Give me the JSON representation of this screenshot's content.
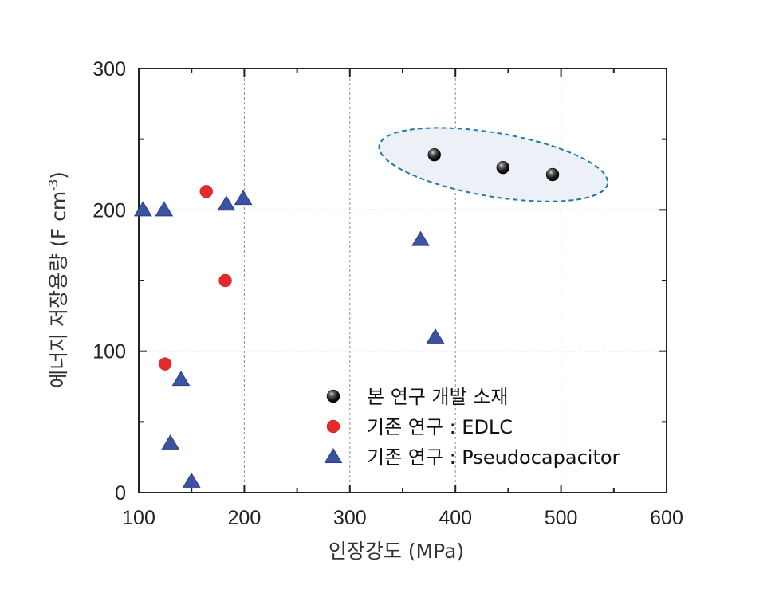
{
  "chart_data": {
    "type": "scatter",
    "xlabel": "인장강도 (MPa)",
    "ylabel_main": "에너지 저장용량 (F cm",
    "ylabel_sup": "-3",
    "ylabel_close": ")",
    "xlim": [
      100,
      600
    ],
    "ylim": [
      0,
      300
    ],
    "xticks": [
      100,
      200,
      300,
      400,
      500,
      600
    ],
    "yticks": [
      0,
      100,
      200,
      300
    ],
    "grid": true,
    "legend_position": "bottom-center",
    "highlight_ellipse_series": "본 연구 개발 소재",
    "series": [
      {
        "name": "본 연구 개발 소재",
        "marker": "sphere",
        "color": "#1a1a1a",
        "points": [
          [
            380,
            239
          ],
          [
            445,
            230
          ],
          [
            492,
            225
          ]
        ]
      },
      {
        "name": "기존 연구 : EDLC",
        "marker": "circle",
        "color": "#e32b2b",
        "points": [
          [
            164,
            213
          ],
          [
            182,
            150
          ],
          [
            125,
            91
          ]
        ]
      },
      {
        "name": "기존 연구 : Pseudocapacitor",
        "marker": "triangle",
        "color": "#3a54a2",
        "points": [
          [
            104,
            200
          ],
          [
            124,
            200
          ],
          [
            183,
            204
          ],
          [
            199,
            208
          ],
          [
            367,
            179
          ],
          [
            381,
            110
          ],
          [
            140,
            80
          ],
          [
            130,
            35
          ],
          [
            150,
            8
          ]
        ]
      }
    ]
  }
}
